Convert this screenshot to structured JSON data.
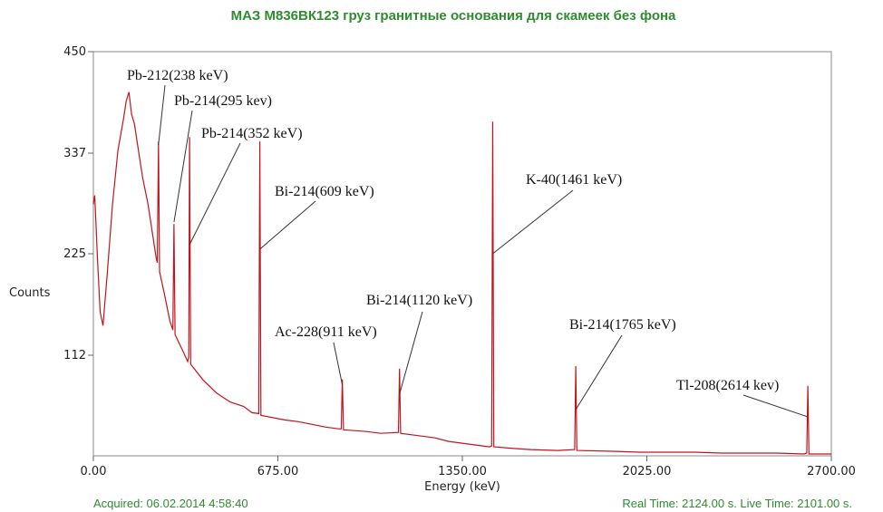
{
  "chart_data": {
    "type": "line",
    "title": "МАЗ М836ВК123 груз гранитные основания для скамеек без фона",
    "x_label": "Energy (keV)",
    "y_label": "Counts",
    "footer_left": "Acquired:  06.02.2014 4:58:40",
    "footer_right": "Real Time: 2124.00 s.  Live Time: 2101.00 s.",
    "color": "#c0141c",
    "xlim": [
      0,
      2700
    ],
    "ylim": [
      0,
      450
    ],
    "xticks": [
      {
        "value": 0,
        "label": "0.00"
      },
      {
        "value": 675,
        "label": "675.00"
      },
      {
        "value": 1350,
        "label": "1350.00"
      },
      {
        "value": 2025,
        "label": "2025.00"
      },
      {
        "value": 2700,
        "label": "2700.00"
      }
    ],
    "yticks": [
      112,
      225,
      337,
      450
    ],
    "x": [
      0,
      5,
      15,
      25,
      35,
      50,
      70,
      90,
      110,
      120,
      130,
      140,
      150,
      165,
      180,
      200,
      215,
      230,
      234,
      238,
      242,
      260,
      280,
      291,
      295,
      299,
      330,
      345,
      349,
      352,
      356,
      400,
      450,
      500,
      550,
      580,
      605,
      609,
      613,
      700,
      750,
      800,
      850,
      900,
      907,
      911,
      915,
      1000,
      1050,
      1116,
      1120,
      1124,
      1200,
      1250,
      1300,
      1400,
      1450,
      1457,
      1461,
      1465,
      1550,
      1600,
      1700,
      1761,
      1765,
      1769,
      1900,
      2000,
      2100,
      2200,
      2300,
      2400,
      2500,
      2600,
      2610,
      2614,
      2618,
      2700
    ],
    "values": [
      280,
      290,
      220,
      160,
      145,
      200,
      280,
      340,
      375,
      395,
      405,
      380,
      370,
      340,
      310,
      280,
      250,
      220,
      215,
      350,
      205,
      180,
      150,
      140,
      258,
      135,
      115,
      105,
      110,
      355,
      102,
      85,
      70,
      60,
      55,
      48,
      47,
      350,
      45,
      40,
      38,
      35,
      32,
      30,
      30,
      85,
      29,
      27,
      25,
      26,
      97,
      25,
      22,
      20,
      16,
      12,
      10,
      11,
      372,
      10,
      8,
      7,
      6,
      7,
      100,
      6,
      5,
      4,
      4,
      4,
      3,
      3,
      3,
      2,
      3,
      78,
      2,
      2
    ],
    "annotations": [
      {
        "text": "Pb-212(238 keV)",
        "x": 238
      },
      {
        "text": "Pb-214(295 kev)",
        "x": 295
      },
      {
        "text": "Pb-214(352 keV)",
        "x": 352
      },
      {
        "text": "Bi-214(609 keV)",
        "x": 609
      },
      {
        "text": "Ac-228(911 keV)",
        "x": 911
      },
      {
        "text": "Bi-214(1120 keV)",
        "x": 1120
      },
      {
        "text": "K-40(1461 keV)",
        "x": 1461
      },
      {
        "text": "Bi-214(1765 keV)",
        "x": 1765
      },
      {
        "text": "Tl-208(2614 kev)",
        "x": 2614
      }
    ]
  }
}
